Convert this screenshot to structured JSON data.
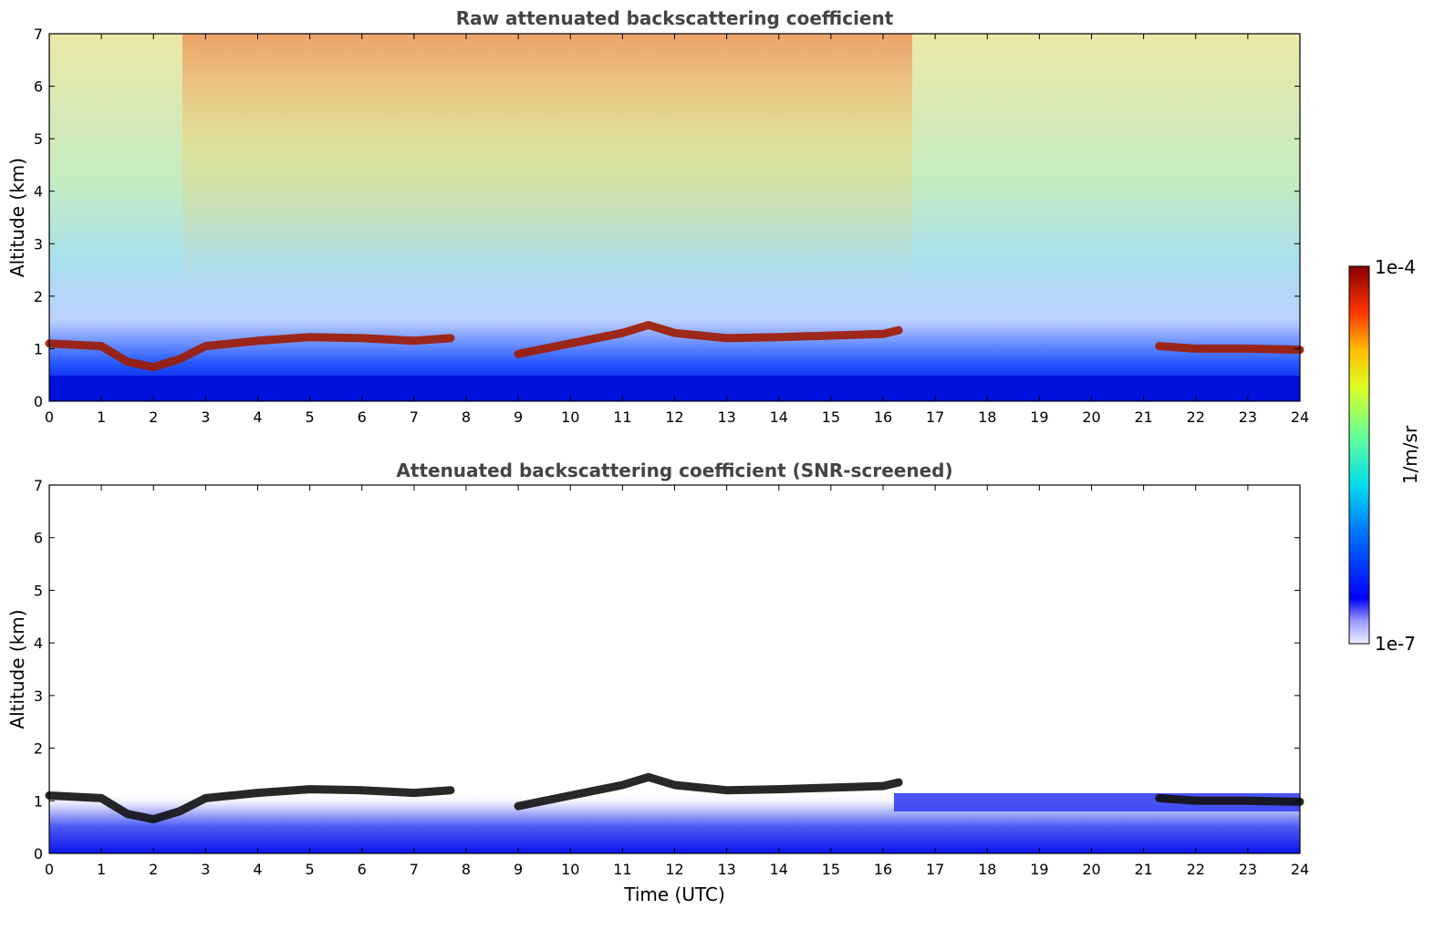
{
  "chart_data": [
    {
      "type": "heatmap",
      "title": "Raw attenuated backscattering coefficient",
      "xlabel": "",
      "ylabel": "Altitude (km)",
      "xlim": [
        0,
        24
      ],
      "ylim": [
        0,
        7
      ],
      "xticks": [
        "0",
        "1",
        "2",
        "3",
        "4",
        "5",
        "6",
        "7",
        "8",
        "9",
        "10",
        "11",
        "12",
        "13",
        "14",
        "15",
        "16",
        "17",
        "18",
        "19",
        "20",
        "21",
        "22",
        "23",
        "24"
      ],
      "yticks": [
        "0",
        "1",
        "2",
        "3",
        "4",
        "5",
        "6",
        "7"
      ],
      "cloud_layer_altitude_km": [
        {
          "x": 0,
          "y": 1.1
        },
        {
          "x": 1,
          "y": 1.05
        },
        {
          "x": 1.5,
          "y": 0.75
        },
        {
          "x": 2,
          "y": 0.65
        },
        {
          "x": 2.5,
          "y": 0.8
        },
        {
          "x": 3,
          "y": 1.05
        },
        {
          "x": 4,
          "y": 1.15
        },
        {
          "x": 5,
          "y": 1.22
        },
        {
          "x": 6,
          "y": 1.2
        },
        {
          "x": 7,
          "y": 1.15
        },
        {
          "x": 7.7,
          "y": 1.2
        },
        {
          "x": 9,
          "y": 0.9
        },
        {
          "x": 10,
          "y": 1.1
        },
        {
          "x": 11,
          "y": 1.3
        },
        {
          "x": 11.5,
          "y": 1.45
        },
        {
          "x": 12,
          "y": 1.3
        },
        {
          "x": 13,
          "y": 1.2
        },
        {
          "x": 14,
          "y": 1.22
        },
        {
          "x": 15,
          "y": 1.25
        },
        {
          "x": 16,
          "y": 1.28
        },
        {
          "x": 16.3,
          "y": 1.35
        },
        {
          "x": 21.3,
          "y": 1.05
        },
        {
          "x": 22,
          "y": 1.0
        },
        {
          "x": 23,
          "y": 1.0
        },
        {
          "x": 24,
          "y": 0.98
        }
      ],
      "colorbar": {
        "max_label": "1e-4",
        "min_label": "1e-7",
        "label": "1/m/sr"
      }
    },
    {
      "type": "heatmap",
      "title": "Attenuated backscattering coefficient (SNR-screened)",
      "xlabel": "Time (UTC)",
      "ylabel": "Altitude (km)",
      "xlim": [
        0,
        24
      ],
      "ylim": [
        0,
        7
      ],
      "xticks": [
        "0",
        "1",
        "2",
        "3",
        "4",
        "5",
        "6",
        "7",
        "8",
        "9",
        "10",
        "11",
        "12",
        "13",
        "14",
        "15",
        "16",
        "17",
        "18",
        "19",
        "20",
        "21",
        "22",
        "23",
        "24"
      ],
      "yticks": [
        "0",
        "1",
        "2",
        "3",
        "4",
        "5",
        "6",
        "7"
      ],
      "cloud_layer_altitude_km": [
        {
          "x": 0,
          "y": 1.1
        },
        {
          "x": 1,
          "y": 1.05
        },
        {
          "x": 1.5,
          "y": 0.75
        },
        {
          "x": 2,
          "y": 0.65
        },
        {
          "x": 2.5,
          "y": 0.8
        },
        {
          "x": 3,
          "y": 1.05
        },
        {
          "x": 4,
          "y": 1.15
        },
        {
          "x": 5,
          "y": 1.22
        },
        {
          "x": 6,
          "y": 1.2
        },
        {
          "x": 7,
          "y": 1.15
        },
        {
          "x": 7.7,
          "y": 1.2
        },
        {
          "x": 9,
          "y": 0.9
        },
        {
          "x": 10,
          "y": 1.1
        },
        {
          "x": 11,
          "y": 1.3
        },
        {
          "x": 11.5,
          "y": 1.45
        },
        {
          "x": 12,
          "y": 1.3
        },
        {
          "x": 13,
          "y": 1.2
        },
        {
          "x": 14,
          "y": 1.22
        },
        {
          "x": 15,
          "y": 1.25
        },
        {
          "x": 16,
          "y": 1.28
        },
        {
          "x": 16.3,
          "y": 1.35
        },
        {
          "x": 21.3,
          "y": 1.05
        },
        {
          "x": 22,
          "y": 1.0
        },
        {
          "x": 23,
          "y": 1.0
        },
        {
          "x": 24,
          "y": 0.98
        }
      ]
    }
  ],
  "colorbar": {
    "max_label": "1e-4",
    "min_label": "1e-7",
    "label": "1/m/sr"
  }
}
